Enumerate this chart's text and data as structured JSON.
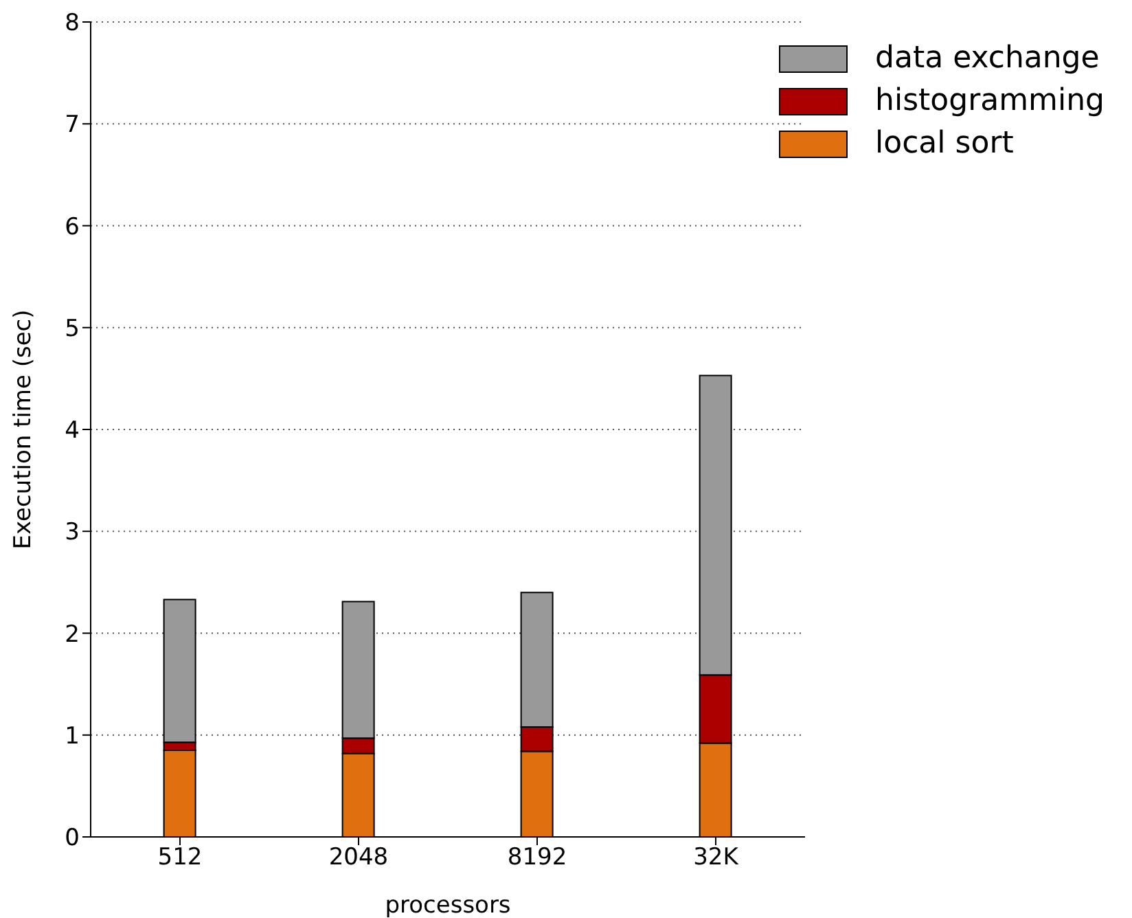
{
  "chart_data": {
    "type": "bar",
    "stacked": true,
    "xlabel": "processors",
    "ylabel": "Execution time (sec)",
    "categories": [
      "512",
      "2048",
      "8192",
      "32K"
    ],
    "series": [
      {
        "name": "local sort",
        "color": "#e0700f",
        "values": [
          0.85,
          0.82,
          0.84,
          0.92
        ]
      },
      {
        "name": "histogramming",
        "color": "#aa0000",
        "values": [
          0.08,
          0.15,
          0.24,
          0.67
        ]
      },
      {
        "name": "data exchange",
        "color": "#999999",
        "values": [
          1.4,
          1.34,
          1.32,
          2.94
        ]
      }
    ],
    "ylim": [
      0,
      8
    ],
    "yticks": [
      0,
      1,
      2,
      3,
      4,
      5,
      6,
      7,
      8
    ],
    "grid": "y",
    "legend": "top right"
  }
}
